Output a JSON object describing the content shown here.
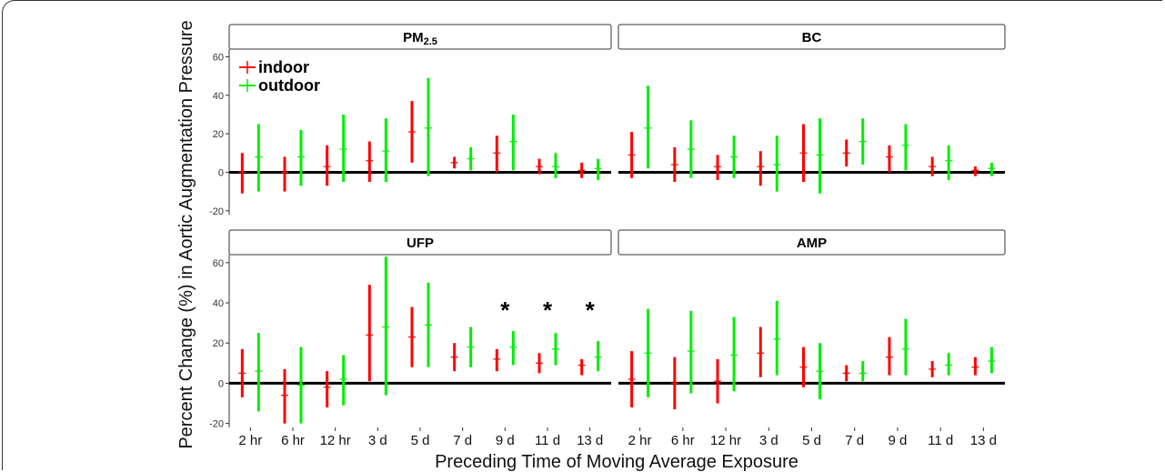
{
  "chart_data": {
    "type": "errorbar",
    "ylabel": "Percent Change (%) in Aortic Augmentation Pressure",
    "xlabel": "Preceding Time of Moving Average Exposure",
    "categories": [
      "2 hr",
      "6 hr",
      "12 hr",
      "3 d",
      "5 d",
      "7 d",
      "9 d",
      "11 d",
      "13 d"
    ],
    "legend": {
      "placement": "top-left",
      "entries": [
        {
          "name": "indoor",
          "color": "#ff0000"
        },
        {
          "name": "outdoor",
          "color": "#00ee00"
        }
      ]
    },
    "grid": false,
    "reference_line": 0,
    "panels": [
      {
        "title_main": "PM",
        "title_sub": "2.5",
        "ylim": [
          -22,
          64
        ],
        "yticks": [
          -20,
          0,
          20,
          40,
          60
        ],
        "show_yticks": true,
        "show_xticks": false,
        "stars": [],
        "indoor": [
          {
            "est": 0,
            "lo": -11,
            "hi": 10
          },
          {
            "est": 0,
            "lo": -10,
            "hi": 8
          },
          {
            "est": 3,
            "lo": -7,
            "hi": 14
          },
          {
            "est": 6,
            "lo": -5,
            "hi": 16
          },
          {
            "est": 21,
            "lo": 5,
            "hi": 37
          },
          {
            "est": 5,
            "lo": 2,
            "hi": 8
          },
          {
            "est": 10,
            "lo": 0,
            "hi": 19
          },
          {
            "est": 3,
            "lo": -1,
            "hi": 7
          },
          {
            "est": 1,
            "lo": -3,
            "hi": 5
          }
        ],
        "outdoor": [
          {
            "est": 8,
            "lo": -10,
            "hi": 25
          },
          {
            "est": 8,
            "lo": -7,
            "hi": 22
          },
          {
            "est": 12,
            "lo": -5,
            "hi": 30
          },
          {
            "est": 11,
            "lo": -5,
            "hi": 28
          },
          {
            "est": 23,
            "lo": -2,
            "hi": 49
          },
          {
            "est": 7,
            "lo": 1,
            "hi": 13
          },
          {
            "est": 16,
            "lo": 1,
            "hi": 30
          },
          {
            "est": 3,
            "lo": -3,
            "hi": 10
          },
          {
            "est": 2,
            "lo": -4,
            "hi": 7
          }
        ]
      },
      {
        "title_main": "BC",
        "title_sub": "",
        "ylim": [
          -22,
          64
        ],
        "yticks": [
          -20,
          0,
          20,
          40,
          60
        ],
        "show_yticks": false,
        "show_xticks": false,
        "stars": [],
        "indoor": [
          {
            "est": 9,
            "lo": -3,
            "hi": 21
          },
          {
            "est": 4,
            "lo": -5,
            "hi": 13
          },
          {
            "est": 3,
            "lo": -4,
            "hi": 9
          },
          {
            "est": 3,
            "lo": -7,
            "hi": 11
          },
          {
            "est": 10,
            "lo": -5,
            "hi": 25
          },
          {
            "est": 10,
            "lo": 3,
            "hi": 17
          },
          {
            "est": 8,
            "lo": 0,
            "hi": 14
          },
          {
            "est": 3,
            "lo": -2,
            "hi": 8
          },
          {
            "est": 1,
            "lo": -2,
            "hi": 3
          }
        ],
        "outdoor": [
          {
            "est": 23,
            "lo": 2,
            "hi": 45
          },
          {
            "est": 12,
            "lo": -3,
            "hi": 27
          },
          {
            "est": 8,
            "lo": -3,
            "hi": 19
          },
          {
            "est": 4,
            "lo": -10,
            "hi": 19
          },
          {
            "est": 9,
            "lo": -11,
            "hi": 28
          },
          {
            "est": 16,
            "lo": 4,
            "hi": 28
          },
          {
            "est": 14,
            "lo": 1,
            "hi": 25
          },
          {
            "est": 6,
            "lo": -4,
            "hi": 14
          },
          {
            "est": 2,
            "lo": -2,
            "hi": 5
          }
        ]
      },
      {
        "title_main": "UFP",
        "title_sub": "",
        "ylim": [
          -22,
          64
        ],
        "yticks": [
          -20,
          0,
          20,
          40,
          60
        ],
        "show_yticks": true,
        "show_xticks": true,
        "stars": [
          "9 d",
          "11 d",
          "13 d"
        ],
        "indoor": [
          {
            "est": 5,
            "lo": -7,
            "hi": 17
          },
          {
            "est": -6,
            "lo": -20,
            "hi": 7
          },
          {
            "est": -2,
            "lo": -12,
            "hi": 6
          },
          {
            "est": 24,
            "lo": 1,
            "hi": 49
          },
          {
            "est": 23,
            "lo": 8,
            "hi": 38
          },
          {
            "est": 13,
            "lo": 6,
            "hi": 20
          },
          {
            "est": 12,
            "lo": 6,
            "hi": 17
          },
          {
            "est": 10,
            "lo": 5,
            "hi": 15
          },
          {
            "est": 9,
            "lo": 4,
            "hi": 12
          }
        ],
        "outdoor": [
          {
            "est": 6,
            "lo": -14,
            "hi": 25
          },
          {
            "est": -1,
            "lo": -20,
            "hi": 18
          },
          {
            "est": 2,
            "lo": -11,
            "hi": 14
          },
          {
            "est": 28,
            "lo": -6,
            "hi": 63
          },
          {
            "est": 29,
            "lo": 8,
            "hi": 50
          },
          {
            "est": 18,
            "lo": 8,
            "hi": 28
          },
          {
            "est": 18,
            "lo": 9,
            "hi": 26
          },
          {
            "est": 17,
            "lo": 9,
            "hi": 25
          },
          {
            "est": 13,
            "lo": 6,
            "hi": 21
          }
        ]
      },
      {
        "title_main": "AMP",
        "title_sub": "",
        "ylim": [
          -22,
          64
        ],
        "yticks": [
          -20,
          0,
          20,
          40,
          60
        ],
        "show_yticks": false,
        "show_xticks": true,
        "stars": [],
        "indoor": [
          {
            "est": 2,
            "lo": -12,
            "hi": 16
          },
          {
            "est": 0,
            "lo": -13,
            "hi": 13
          },
          {
            "est": 1,
            "lo": -10,
            "hi": 12
          },
          {
            "est": 15,
            "lo": 3,
            "hi": 28
          },
          {
            "est": 8,
            "lo": -2,
            "hi": 18
          },
          {
            "est": 5,
            "lo": 1,
            "hi": 9
          },
          {
            "est": 13,
            "lo": 4,
            "hi": 23
          },
          {
            "est": 7,
            "lo": 3,
            "hi": 11
          },
          {
            "est": 8,
            "lo": 4,
            "hi": 13
          }
        ],
        "outdoor": [
          {
            "est": 15,
            "lo": -7,
            "hi": 37
          },
          {
            "est": 16,
            "lo": -5,
            "hi": 36
          },
          {
            "est": 14,
            "lo": -4,
            "hi": 33
          },
          {
            "est": 22,
            "lo": 4,
            "hi": 41
          },
          {
            "est": 6,
            "lo": -8,
            "hi": 20
          },
          {
            "est": 5,
            "lo": 1,
            "hi": 11
          },
          {
            "est": 17,
            "lo": 4,
            "hi": 32
          },
          {
            "est": 9,
            "lo": 4,
            "hi": 15
          },
          {
            "est": 11,
            "lo": 5,
            "hi": 18
          }
        ]
      }
    ],
    "star_symbol": "*"
  }
}
